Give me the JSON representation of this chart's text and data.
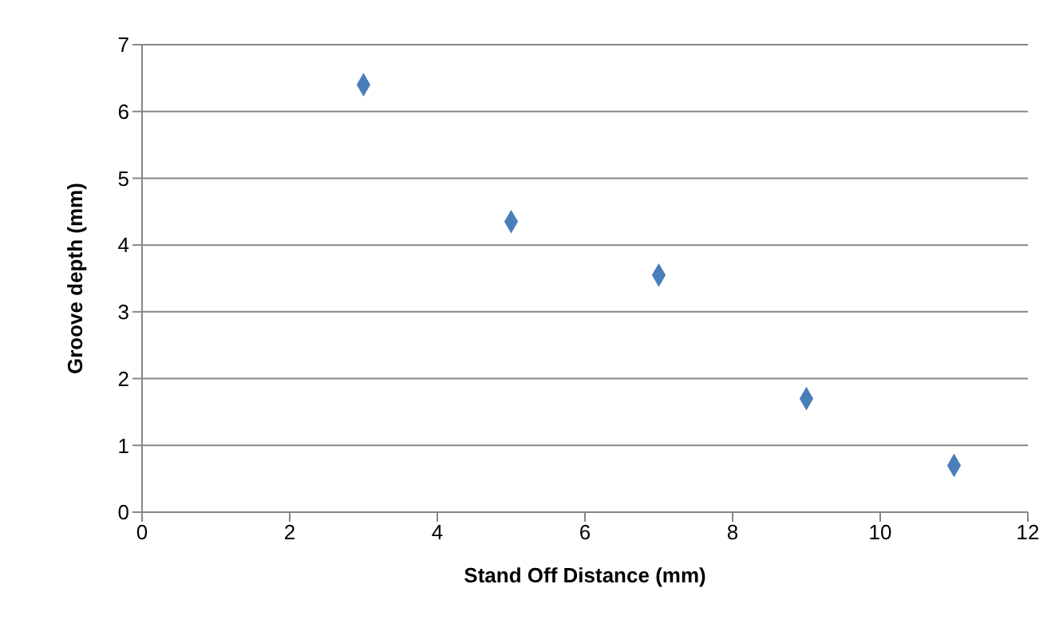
{
  "chart_data": {
    "type": "scatter",
    "xlabel": "Stand Off Distance (mm)",
    "ylabel": "Groove depth (mm)",
    "x": [
      3,
      5,
      7,
      9,
      11
    ],
    "series": [
      {
        "color": "#4a7ebb",
        "values": [
          6.4,
          4.35,
          3.55,
          1.7,
          0.7
        ]
      }
    ],
    "xlim": [
      0,
      12
    ],
    "xticks": [
      0,
      2,
      4,
      6,
      8,
      10,
      12
    ],
    "ylim": [
      0,
      7
    ],
    "yticks": [
      0,
      1,
      2,
      3,
      4,
      5,
      6,
      7
    ],
    "grid": "y",
    "legend": false,
    "marker": "diamond"
  }
}
